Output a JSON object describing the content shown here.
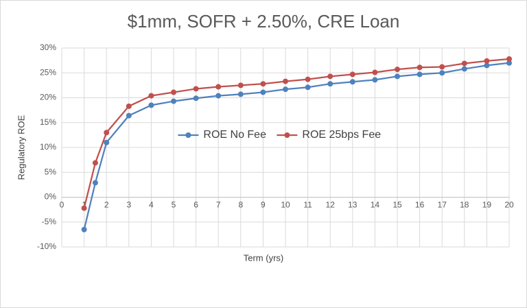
{
  "chart_data": {
    "type": "line",
    "title": "$1mm, SOFR + 2.50%, CRE Loan",
    "x_label": "Term (yrs)",
    "y_label": "Regulatory ROE",
    "x": [
      1,
      1.5,
      2,
      3,
      4,
      5,
      6,
      7,
      8,
      9,
      10,
      11,
      12,
      13,
      14,
      15,
      16,
      17,
      18,
      19,
      20
    ],
    "series": [
      {
        "name": "ROE No Fee",
        "color": "#4f81bd",
        "values": [
          -6.5,
          2.9,
          11.0,
          16.4,
          18.5,
          19.3,
          19.9,
          20.4,
          20.7,
          21.1,
          21.7,
          22.1,
          22.8,
          23.2,
          23.6,
          24.3,
          24.7,
          25.0,
          25.8,
          26.5,
          27.0
        ]
      },
      {
        "name": "ROE 25bps Fee",
        "color": "#c0504d",
        "values": [
          -2.2,
          6.9,
          13.0,
          18.3,
          20.4,
          21.1,
          21.8,
          22.2,
          22.5,
          22.8,
          23.3,
          23.7,
          24.3,
          24.7,
          25.1,
          25.7,
          26.1,
          26.2,
          26.9,
          27.4,
          27.8
        ]
      }
    ],
    "xlim": [
      0,
      20
    ],
    "xticks": [
      0,
      1,
      2,
      3,
      4,
      5,
      6,
      7,
      8,
      9,
      10,
      11,
      12,
      13,
      14,
      15,
      16,
      17,
      18,
      19,
      20
    ],
    "ylim": [
      -10,
      30
    ],
    "yticks": [
      {
        "value": -10,
        "label": "-10%"
      },
      {
        "value": -5,
        "label": "-5%"
      },
      {
        "value": 0,
        "label": "0%"
      },
      {
        "value": 5,
        "label": "5%"
      },
      {
        "value": 10,
        "label": "10%"
      },
      {
        "value": 15,
        "label": "15%"
      },
      {
        "value": 20,
        "label": "20%"
      },
      {
        "value": 25,
        "label": "25%"
      },
      {
        "value": 30,
        "label": "30%"
      }
    ],
    "grid": true,
    "legend": "center"
  }
}
